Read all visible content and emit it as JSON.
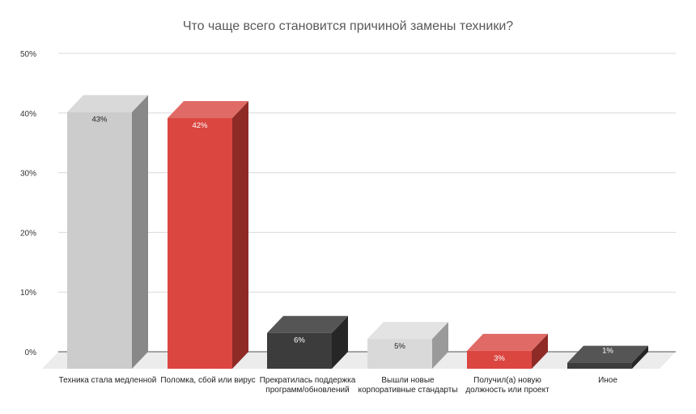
{
  "chart_data": {
    "type": "bar",
    "style": "3d-column",
    "title": "Что чаще всего становится причиной замены техники?",
    "xlabel": "",
    "ylabel": "",
    "ylim": [
      0,
      50
    ],
    "yticks": [
      "0%",
      "10%",
      "20%",
      "30%",
      "40%",
      "50%"
    ],
    "grid": true,
    "legend": "none",
    "categories": [
      [
        "Техника стала медленной"
      ],
      [
        "Поломка, сбой или вирус"
      ],
      [
        "Прекратилась поддержка",
        "программ/обновлений"
      ],
      [
        "Вышли новые",
        "корпоративные стандарты"
      ],
      [
        "Получил(а) новую",
        "должность или проект"
      ],
      [
        "Иное"
      ]
    ],
    "values": [
      43,
      42,
      6,
      5,
      3,
      1
    ],
    "value_labels": [
      "43%",
      "42%",
      "6%",
      "5%",
      "3%",
      "1%"
    ],
    "colors": [
      {
        "front": "#cccccc",
        "top": "#d9d9d9",
        "side": "#888888",
        "label": "#222222"
      },
      {
        "front": "#db4640",
        "top": "#e06b66",
        "side": "#8e2b27",
        "label": "#ffffff"
      },
      {
        "front": "#3c3c3c",
        "top": "#555555",
        "side": "#262626",
        "label": "#ffffff"
      },
      {
        "front": "#d9d9d9",
        "top": "#e3e3e3",
        "side": "#9a9a9a",
        "label": "#222222"
      },
      {
        "front": "#db4640",
        "top": "#e06b66",
        "side": "#8e2b27",
        "label": "#ffffff"
      },
      {
        "front": "#3c3c3c",
        "top": "#555555",
        "side": "#262626",
        "label": "#ffffff"
      }
    ]
  }
}
